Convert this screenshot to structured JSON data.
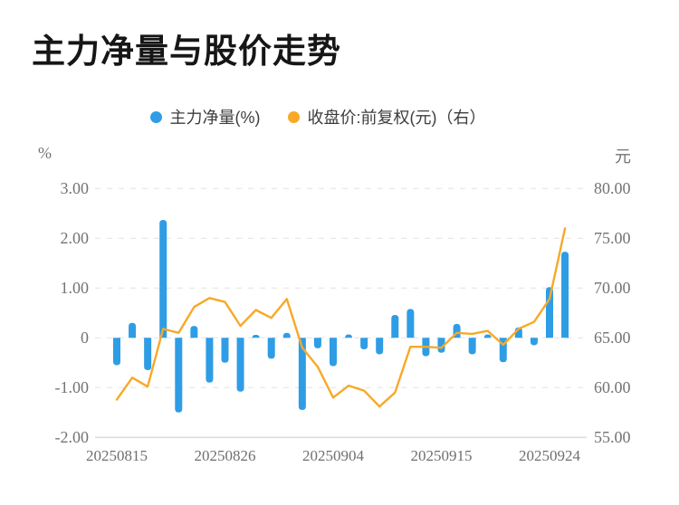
{
  "title": "主力净量与股价走势",
  "legend": [
    {
      "label": "主力净量(%)",
      "color": "#2E9DE5"
    },
    {
      "label": "收盘价:前复权(元)（右）",
      "color": "#F7A928"
    }
  ],
  "left_axis": {
    "unit": "%",
    "ticks": [
      "3.00",
      "2.00",
      "1.00",
      "0",
      "-1.00",
      "-2.00"
    ],
    "values": [
      3,
      2,
      1,
      0,
      -1,
      -2
    ]
  },
  "right_axis": {
    "unit": "元",
    "ticks": [
      "80.00",
      "75.00",
      "70.00",
      "65.00",
      "60.00",
      "55.00"
    ],
    "values": [
      80,
      75,
      70,
      65,
      60,
      55
    ]
  },
  "x_axis": {
    "tick_labels": [
      "20250815",
      "20250826",
      "20250904",
      "20250915",
      "20250924"
    ],
    "tick_indices": [
      0,
      7,
      14,
      21,
      28
    ]
  },
  "chart_data": {
    "type": "bar+line",
    "title": "主力净量与股价走势",
    "x": [
      "20250815",
      "20250818",
      "20250819",
      "20250820",
      "20250821",
      "20250822",
      "20250825",
      "20250826",
      "20250827",
      "20250828",
      "20250829",
      "20250901",
      "20250902",
      "20250903",
      "20250904",
      "20250905",
      "20250908",
      "20250909",
      "20250910",
      "20250911",
      "20250912",
      "20250915",
      "20250916",
      "20250917",
      "20250918",
      "20250919",
      "20250922",
      "20250923",
      "20250924",
      "20250925"
    ],
    "series": [
      {
        "name": "主力净量(%)",
        "type": "bar",
        "axis": "left",
        "color": "#2E9DE5",
        "values": [
          -0.55,
          0.3,
          -0.65,
          2.37,
          -1.5,
          0.24,
          -0.9,
          -0.5,
          -1.08,
          0.06,
          -0.42,
          0.1,
          -1.45,
          -0.21,
          -0.57,
          0.07,
          -0.23,
          -0.33,
          0.46,
          0.58,
          -0.37,
          -0.3,
          0.28,
          -0.33,
          0.07,
          -0.49,
          0.21,
          -0.15,
          1.02,
          1.73
        ]
      },
      {
        "name": "收盘价:前复权(元)",
        "type": "line",
        "axis": "right",
        "color": "#F7A928",
        "values": [
          58.8,
          61.0,
          60.1,
          65.9,
          65.5,
          68.1,
          69.0,
          68.6,
          66.2,
          67.8,
          67.0,
          68.9,
          64.0,
          62.1,
          59.0,
          60.2,
          59.7,
          58.1,
          59.5,
          64.1,
          64.1,
          64.0,
          65.5,
          65.4,
          65.7,
          64.3,
          65.9,
          66.6,
          68.9,
          76.0
        ]
      }
    ],
    "left_ylabel": "%",
    "right_ylabel": "元",
    "left_ylim": [
      -2,
      3
    ],
    "right_ylim": [
      55,
      80
    ],
    "grid": "dashed-horizontal",
    "legend_position": "top-center"
  },
  "colors": {
    "bar": "#2E9DE5",
    "line": "#F7A928",
    "grid": "#e6e6e6",
    "baseline": "#dcdcdc",
    "axis_text": "#737373",
    "title_text": "#161616"
  }
}
